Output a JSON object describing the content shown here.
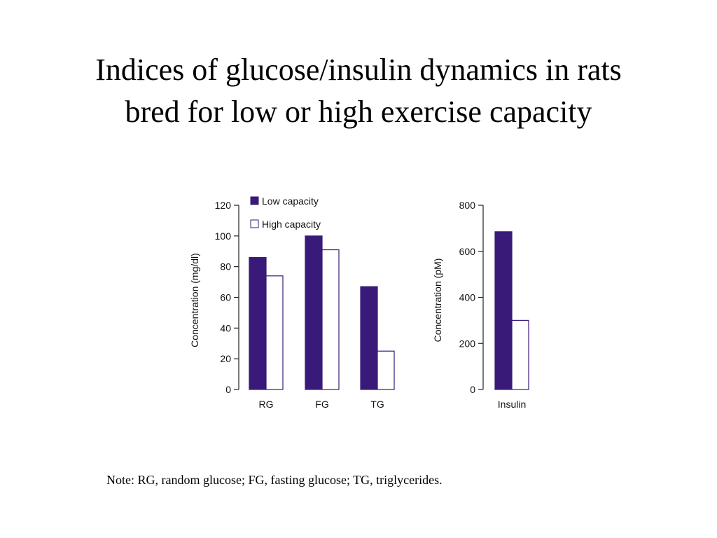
{
  "slide": {
    "title_line1": "Indices of glucose/insulin dynamics in rats",
    "title_line2": "bred for low or high exercise capacity",
    "note": "Note: RG, random glucose; FG, fasting glucose; TG, triglycerides."
  },
  "colors": {
    "low": "#3a1a78",
    "high": "#ffffff",
    "outline": "#3a1a78"
  },
  "chart_data": [
    {
      "type": "bar",
      "categories": [
        "RG",
        "FG",
        "TG"
      ],
      "series": [
        {
          "name": "Low capacity",
          "values": [
            86,
            100,
            67
          ]
        },
        {
          "name": "High capacity",
          "values": [
            74,
            91,
            25
          ]
        }
      ],
      "ylabel": "Concentration (mg/dl)",
      "ylim": [
        0,
        120
      ],
      "yticks": [
        0,
        20,
        40,
        60,
        80,
        100,
        120
      ],
      "legend": "top-left",
      "grid": false
    },
    {
      "type": "bar",
      "categories": [
        "Insulin"
      ],
      "series": [
        {
          "name": "Low capacity",
          "values": [
            685
          ]
        },
        {
          "name": "High capacity",
          "values": [
            300
          ]
        }
      ],
      "ylabel": "Concentration (pM)",
      "ylim": [
        0,
        800
      ],
      "yticks": [
        0,
        200,
        400,
        600,
        800
      ],
      "grid": false
    }
  ]
}
